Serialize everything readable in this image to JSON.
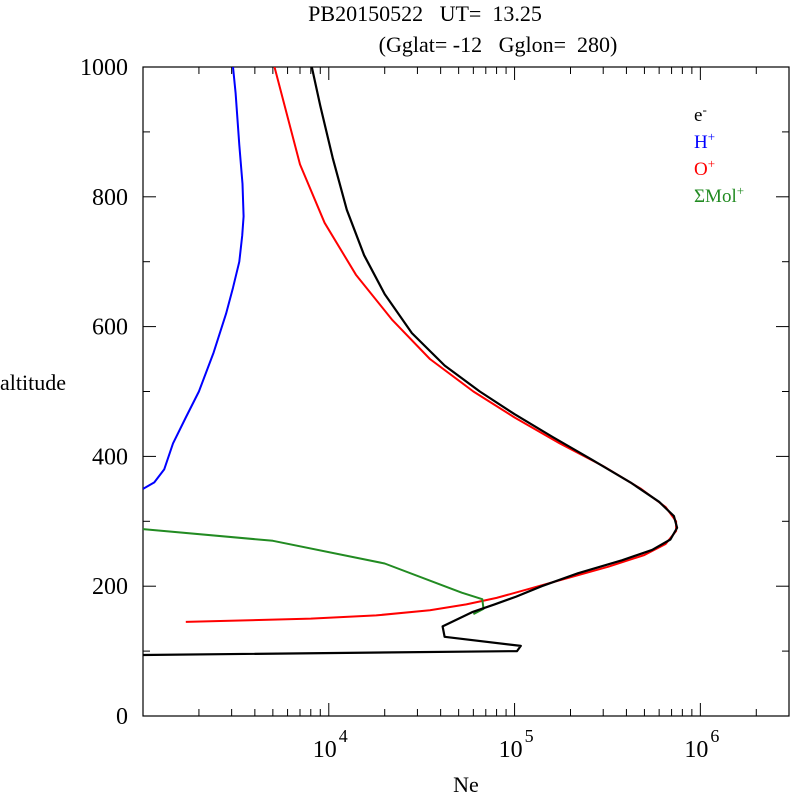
{
  "title_line1": "PB20150522   UT=  13.25",
  "title_line2": "(Gglat= -12   Gglon=  280)",
  "chart_data": {
    "type": "line",
    "xlabel": "Ne",
    "ylabel": "altitude",
    "xscale": "log",
    "xlim": [
      1000,
      3000000
    ],
    "ylim": [
      0,
      1000
    ],
    "x_tick_labels": [
      {
        "value": 10000,
        "base": "10",
        "exp": "4"
      },
      {
        "value": 100000,
        "base": "10",
        "exp": "5"
      },
      {
        "value": 1000000,
        "base": "10",
        "exp": "6"
      }
    ],
    "y_ticks": [
      0,
      200,
      400,
      600,
      800,
      1000
    ],
    "y_minor_ticks": [
      100,
      300,
      500,
      700,
      900
    ],
    "legend_position": "top-right",
    "series": [
      {
        "name": "e-",
        "label_base": "e",
        "label_sup": "-",
        "color": "#000000",
        "points": [
          [
            1000,
            94
          ],
          [
            103000,
            100
          ],
          [
            108000,
            108
          ],
          [
            42000,
            122
          ],
          [
            41000,
            138
          ],
          [
            59000,
            160
          ],
          [
            78000,
            172
          ],
          [
            102000,
            184
          ],
          [
            140000,
            200
          ],
          [
            220000,
            220
          ],
          [
            380000,
            240
          ],
          [
            550000,
            256
          ],
          [
            690000,
            272
          ],
          [
            750000,
            290
          ],
          [
            720000,
            308
          ],
          [
            600000,
            330
          ],
          [
            420000,
            360
          ],
          [
            260000,
            395
          ],
          [
            160000,
            430
          ],
          [
            100000,
            465
          ],
          [
            65000,
            500
          ],
          [
            42000,
            540
          ],
          [
            28000,
            590
          ],
          [
            20000,
            650
          ],
          [
            15500,
            710
          ],
          [
            12500,
            780
          ],
          [
            10500,
            860
          ],
          [
            9000,
            940
          ],
          [
            8100,
            1000
          ]
        ]
      },
      {
        "name": "H+",
        "label_base": "H",
        "label_sup": "+",
        "color": "#0000ff",
        "points": [
          [
            1000,
            350
          ],
          [
            1150,
            360
          ],
          [
            1300,
            380
          ],
          [
            1450,
            420
          ],
          [
            1700,
            460
          ],
          [
            2000,
            500
          ],
          [
            2400,
            560
          ],
          [
            2800,
            620
          ],
          [
            3050,
            660
          ],
          [
            3300,
            700
          ],
          [
            3420,
            740
          ],
          [
            3480,
            770
          ],
          [
            3430,
            820
          ],
          [
            3300,
            880
          ],
          [
            3150,
            960
          ],
          [
            3050,
            1000
          ]
        ]
      },
      {
        "name": "O+",
        "label_base": "O",
        "label_sup": "+",
        "color": "#ff0000",
        "points": [
          [
            1700,
            145
          ],
          [
            8000,
            150
          ],
          [
            18000,
            155
          ],
          [
            35000,
            163
          ],
          [
            55000,
            172
          ],
          [
            80000,
            182
          ],
          [
            120000,
            196
          ],
          [
            190000,
            212
          ],
          [
            320000,
            230
          ],
          [
            500000,
            248
          ],
          [
            650000,
            265
          ],
          [
            740000,
            285
          ],
          [
            740000,
            300
          ],
          [
            650000,
            322
          ],
          [
            480000,
            350
          ],
          [
            300000,
            385
          ],
          [
            175000,
            420
          ],
          [
            100000,
            460
          ],
          [
            60000,
            500
          ],
          [
            35000,
            550
          ],
          [
            22000,
            610
          ],
          [
            14000,
            680
          ],
          [
            9500,
            760
          ],
          [
            7000,
            850
          ],
          [
            5100,
            1000
          ]
        ]
      },
      {
        "name": "ΣMol+",
        "label_base": "ΣMol",
        "label_sup": "+",
        "color": "#228b22",
        "points": [
          [
            1000,
            288
          ],
          [
            5000,
            270
          ],
          [
            20000,
            235
          ],
          [
            42000,
            200
          ],
          [
            52000,
            190
          ],
          [
            67000,
            180
          ],
          [
            68000,
            165
          ],
          [
            60000,
            157
          ]
        ]
      }
    ]
  }
}
